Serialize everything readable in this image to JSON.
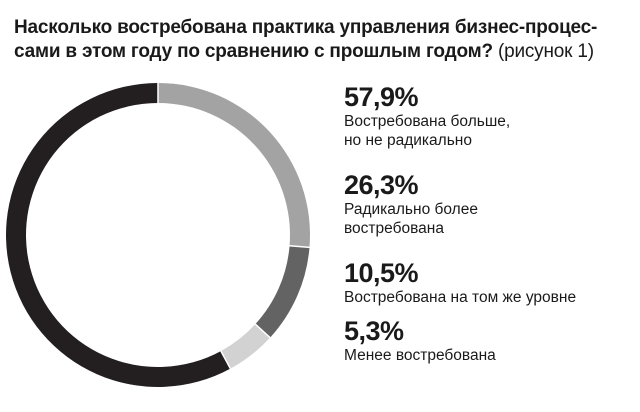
{
  "title": {
    "main": "Насколько востребована практика управления бизнес-процес-сами в этом году по сравнению с прошлым годом?",
    "suffix": "(рисунок 1)"
  },
  "chart_data": {
    "type": "pie",
    "donut": true,
    "title": "Насколько востребована практика управления бизнес-процес-сами в этом году по сравнению с прошлым годом? (рисунок 1)",
    "slices": [
      {
        "label": "Востребована больше, но не радикально",
        "value": 57.9,
        "value_text": "57,9%",
        "color": "#231f20"
      },
      {
        "label": "Радикально более востребована",
        "value": 26.3,
        "value_text": "26,3%",
        "color": "#a3a3a3"
      },
      {
        "label": "Востребована на том же уровне",
        "value": 10.5,
        "value_text": "10,5%",
        "color": "#636363"
      },
      {
        "label": "Менее востребована",
        "value": 5.3,
        "value_text": "5,3%",
        "color": "#d2d2d2"
      }
    ],
    "legend_position": "right"
  },
  "legend": [
    {
      "pct": "57,9%",
      "line1": "Востребована больше,",
      "line2": "но не радикально"
    },
    {
      "pct": "26,3%",
      "line1": "Радикально более",
      "line2": "востребована"
    },
    {
      "pct": "10,5%",
      "line1": "Востребована на том же уровне",
      "line2": ""
    },
    {
      "pct": "5,3%",
      "line1": "Менее востребована",
      "line2": ""
    }
  ]
}
